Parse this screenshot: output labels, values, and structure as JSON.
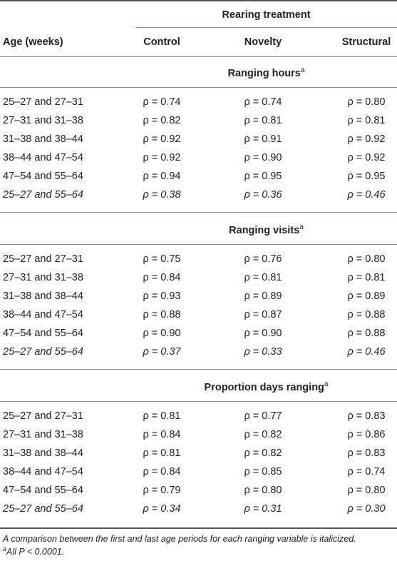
{
  "header": {
    "rearing_treatment": "Rearing treatment",
    "age_col": "Age (weeks)",
    "control": "Control",
    "novelty": "Novelty",
    "structural": "Structural"
  },
  "sections": [
    {
      "title": "Ranging hours",
      "sup": "a",
      "rows": [
        {
          "age": "25–27 and 27–31",
          "control": "ρ = 0.74",
          "novelty": "ρ = 0.74",
          "structural": "ρ = 0.80",
          "italic": false
        },
        {
          "age": "27–31 and 31–38",
          "control": "ρ = 0.82",
          "novelty": "ρ = 0.81",
          "structural": "ρ = 0.81",
          "italic": false
        },
        {
          "age": "31–38 and 38–44",
          "control": "ρ = 0.92",
          "novelty": "ρ = 0.91",
          "structural": "ρ = 0.92",
          "italic": false
        },
        {
          "age": "38–44 and 47–54",
          "control": "ρ = 0.92",
          "novelty": "ρ = 0.90",
          "structural": "ρ = 0.92",
          "italic": false
        },
        {
          "age": "47–54 and 55–64",
          "control": "ρ = 0.94",
          "novelty": "ρ = 0.95",
          "structural": "ρ = 0.95",
          "italic": false
        },
        {
          "age": "25–27 and 55–64",
          "control": "ρ = 0.38",
          "novelty": "ρ = 0.36",
          "structural": "ρ = 0.46",
          "italic": true
        }
      ]
    },
    {
      "title": "Ranging visits",
      "sup": "a",
      "rows": [
        {
          "age": "25–27 and 27–31",
          "control": "ρ = 0.75",
          "novelty": "ρ = 0.76",
          "structural": "ρ = 0.80",
          "italic": false
        },
        {
          "age": "27–31 and 31–38",
          "control": "ρ = 0.84",
          "novelty": "ρ = 0.81",
          "structural": "ρ = 0.81",
          "italic": false
        },
        {
          "age": "31–38 and 38–44",
          "control": "ρ = 0.93",
          "novelty": "ρ = 0.89",
          "structural": "ρ = 0.89",
          "italic": false
        },
        {
          "age": "38–44 and 47–54",
          "control": "ρ = 0.88",
          "novelty": "ρ = 0.87",
          "structural": "ρ = 0.88",
          "italic": false
        },
        {
          "age": "47–54 and 55–64",
          "control": "ρ = 0.90",
          "novelty": "ρ = 0.90",
          "structural": "ρ = 0.88",
          "italic": false
        },
        {
          "age": "25–27 and 55–64",
          "control": "ρ = 0.37",
          "novelty": "ρ = 0.33",
          "structural": "ρ = 0.46",
          "italic": true
        }
      ]
    },
    {
      "title": "Proportion days ranging",
      "sup": "a",
      "rows": [
        {
          "age": "25–27 and 27–31",
          "control": "ρ = 0.81",
          "novelty": "ρ = 0.77",
          "structural": "ρ = 0.83",
          "italic": false
        },
        {
          "age": "27–31 and 31–38",
          "control": "ρ = 0.84",
          "novelty": "ρ = 0.82",
          "structural": "ρ = 0.86",
          "italic": false
        },
        {
          "age": "31–38 and 38–44",
          "control": "ρ = 0.81",
          "novelty": "ρ = 0.82",
          "structural": "ρ = 0.83",
          "italic": false
        },
        {
          "age": "38–44 and 47–54",
          "control": "ρ = 0.84",
          "novelty": "ρ = 0.85",
          "structural": "ρ = 0.74",
          "italic": false
        },
        {
          "age": "47–54 and 55–64",
          "control": "ρ = 0.79",
          "novelty": "ρ = 0.80",
          "structural": "ρ = 0.80",
          "italic": false
        },
        {
          "age": "25–27 and 55–64",
          "control": "ρ = 0.34",
          "novelty": "ρ = 0.31",
          "structural": "ρ = 0.30",
          "italic": true
        }
      ]
    }
  ],
  "footnotes": {
    "note1": "A comparison between the first and last age periods for each ranging variable is italicized.",
    "note2_sup": "a",
    "note2": "All P < 0.0001."
  }
}
